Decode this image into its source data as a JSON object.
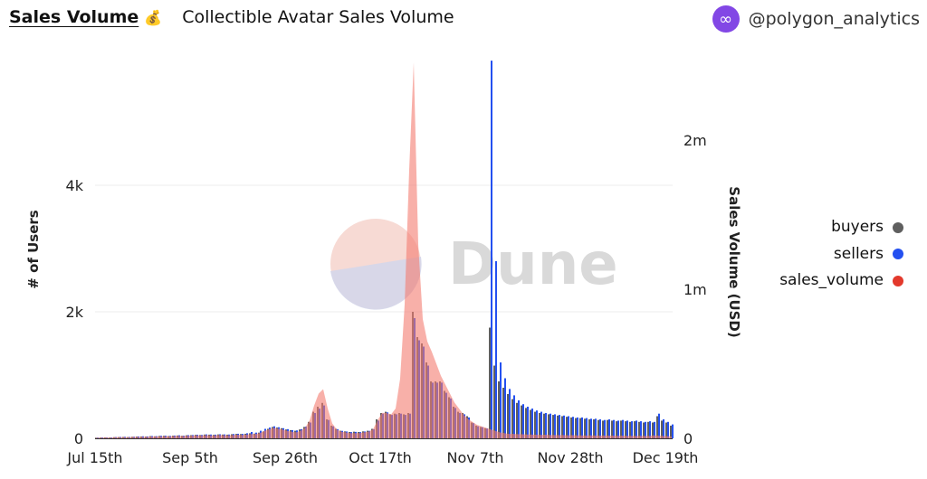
{
  "header": {
    "query_title": "Sales Volume",
    "title_emoji": "💰",
    "subtitle": "Collectible Avatar Sales Volume",
    "owner": "@polygon_analytics"
  },
  "watermark": "Dune",
  "colors": {
    "buyers": "#5f5f5f",
    "sellers": "#2450f0",
    "sales_volume": "#e3392c",
    "area": "#f47b70"
  },
  "chart_data": {
    "type": "bar",
    "title": "Collectible Avatar Sales Volume",
    "ylabel": "# of Users",
    "y2label": "Sales Volume (USD)",
    "ylim": [
      0,
      6000
    ],
    "y2lim": [
      0,
      2500000
    ],
    "yticks": [
      {
        "v": 0,
        "label": "0"
      },
      {
        "v": 2000,
        "label": "2k"
      },
      {
        "v": 4000,
        "label": "4k"
      }
    ],
    "y2ticks": [
      {
        "v": 0,
        "label": "0"
      },
      {
        "v": 1000000,
        "label": "1m"
      },
      {
        "v": 2000000,
        "label": "2m"
      }
    ],
    "xticks": [
      {
        "i": 0,
        "label": "Jul 15th"
      },
      {
        "i": 21,
        "label": "Sep 5th"
      },
      {
        "i": 42,
        "label": "Sep 26th"
      },
      {
        "i": 63,
        "label": "Oct 17th"
      },
      {
        "i": 84,
        "label": "Nov 7th"
      },
      {
        "i": 105,
        "label": "Nov 28th"
      },
      {
        "i": 126,
        "label": "Dec 19th"
      }
    ],
    "legend_position": "right",
    "legend": [
      "buyers",
      "sellers",
      "sales_volume"
    ],
    "series": [
      {
        "name": "buyers",
        "kind": "bar",
        "values": [
          10,
          12,
          15,
          12,
          18,
          20,
          22,
          20,
          25,
          28,
          30,
          28,
          35,
          32,
          38,
          40,
          36,
          42,
          45,
          40,
          48,
          50,
          55,
          52,
          60,
          58,
          55,
          62,
          60,
          58,
          65,
          70,
          68,
          72,
          80,
          75,
          90,
          110,
          150,
          180,
          170,
          160,
          140,
          130,
          120,
          140,
          180,
          260,
          420,
          500,
          560,
          300,
          200,
          150,
          120,
          110,
          100,
          105,
          100,
          110,
          120,
          150,
          300,
          400,
          420,
          380,
          390,
          400,
          380,
          400,
          2000,
          1600,
          1500,
          1200,
          900,
          900,
          900,
          750,
          650,
          500,
          420,
          400,
          350,
          250,
          200,
          180,
          160,
          1750,
          1150,
          900,
          800,
          700,
          620,
          560,
          520,
          480,
          450,
          420,
          400,
          390,
          380,
          370,
          360,
          350,
          340,
          330,
          320,
          320,
          310,
          300,
          300,
          290,
          280,
          290,
          280,
          270,
          280,
          270,
          260,
          270,
          260,
          250,
          260,
          250,
          350,
          280,
          250,
          200
        ]
      },
      {
        "name": "sellers",
        "kind": "bar",
        "values": [
          12,
          14,
          15,
          14,
          20,
          22,
          24,
          22,
          26,
          30,
          32,
          30,
          36,
          34,
          40,
          42,
          38,
          44,
          48,
          42,
          50,
          52,
          56,
          54,
          62,
          60,
          58,
          64,
          62,
          60,
          68,
          72,
          70,
          80,
          100,
          90,
          120,
          150,
          170,
          190,
          175,
          160,
          145,
          130,
          125,
          145,
          185,
          250,
          400,
          470,
          520,
          290,
          190,
          145,
          118,
          108,
          98,
          102,
          98,
          108,
          118,
          145,
          280,
          390,
          410,
          370,
          380,
          390,
          370,
          390,
          1900,
          1550,
          1450,
          1150,
          880,
          880,
          880,
          720,
          630,
          480,
          400,
          380,
          330,
          240,
          190,
          175,
          155,
          5970,
          2800,
          1200,
          950,
          780,
          680,
          600,
          540,
          500,
          470,
          440,
          420,
          400,
          390,
          380,
          370,
          360,
          350,
          340,
          330,
          330,
          320,
          310,
          310,
          300,
          290,
          300,
          290,
          280,
          290,
          280,
          270,
          280,
          270,
          260,
          270,
          260,
          390,
          300,
          260,
          220
        ]
      },
      {
        "name": "sales_volume",
        "kind": "area",
        "unit": "million USD",
        "values": [
          0.004,
          0.005,
          0.006,
          0.005,
          0.007,
          0.008,
          0.008,
          0.008,
          0.009,
          0.01,
          0.01,
          0.01,
          0.012,
          0.012,
          0.013,
          0.014,
          0.013,
          0.015,
          0.016,
          0.015,
          0.017,
          0.018,
          0.02,
          0.019,
          0.021,
          0.02,
          0.02,
          0.022,
          0.021,
          0.02,
          0.022,
          0.024,
          0.023,
          0.025,
          0.028,
          0.03,
          0.035,
          0.05,
          0.06,
          0.07,
          0.065,
          0.06,
          0.05,
          0.045,
          0.04,
          0.05,
          0.07,
          0.12,
          0.22,
          0.3,
          0.33,
          0.2,
          0.1,
          0.06,
          0.045,
          0.04,
          0.035,
          0.035,
          0.035,
          0.04,
          0.045,
          0.06,
          0.12,
          0.17,
          0.17,
          0.16,
          0.2,
          0.4,
          0.9,
          1.8,
          2.52,
          1.3,
          0.8,
          0.65,
          0.58,
          0.5,
          0.42,
          0.36,
          0.3,
          0.24,
          0.2,
          0.16,
          0.13,
          0.11,
          0.09,
          0.08,
          0.07,
          0.06,
          0.05,
          0.04,
          0.035,
          0.03,
          0.03,
          0.028,
          0.027,
          0.026,
          0.025,
          0.024,
          0.023,
          0.024,
          0.022,
          0.022,
          0.021,
          0.022,
          0.02,
          0.021,
          0.02,
          0.02,
          0.019,
          0.02,
          0.019,
          0.018,
          0.019,
          0.018,
          0.018,
          0.017,
          0.018,
          0.017,
          0.017,
          0.016,
          0.017,
          0.016,
          0.016,
          0.02,
          0.018,
          0.016,
          0.015,
          0.012
        ]
      }
    ]
  }
}
